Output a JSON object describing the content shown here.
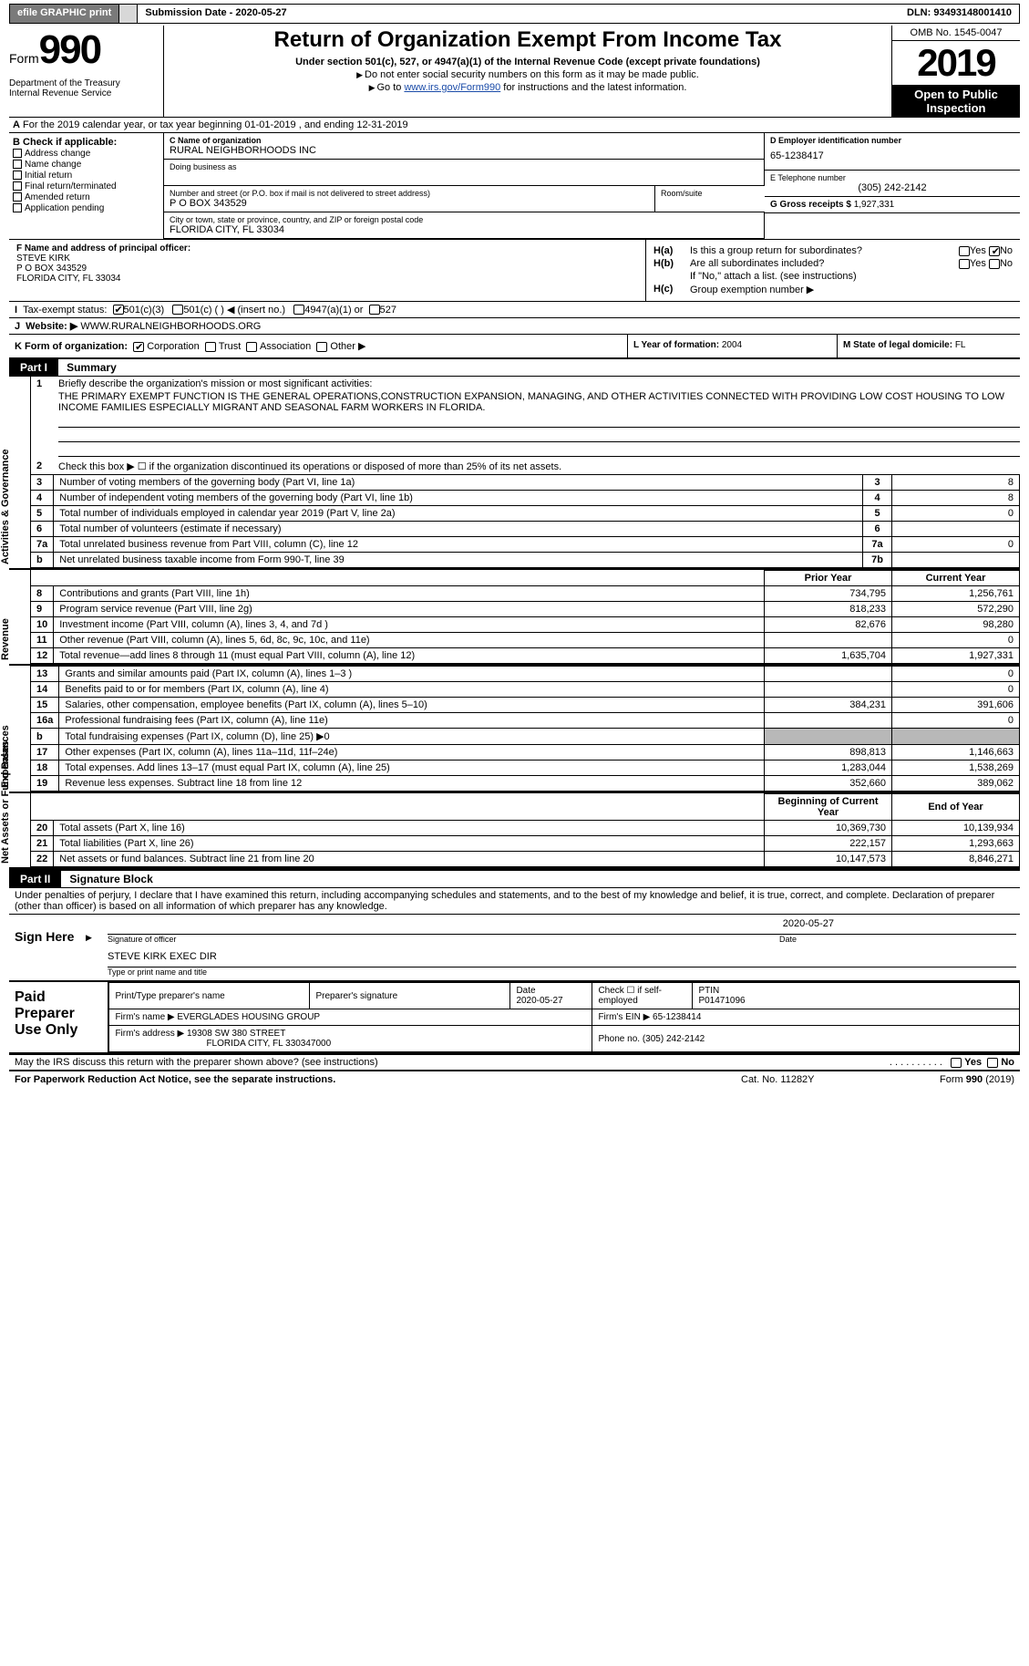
{
  "topbar": {
    "efile": "efile GRAPHIC print",
    "submission": "Submission Date - 2020-05-27",
    "dln": "DLN: 93493148001410"
  },
  "header": {
    "form_word": "Form",
    "form_num": "990",
    "dept": "Department of the Treasury\nInternal Revenue Service",
    "title": "Return of Organization Exempt From Income Tax",
    "subtitle": "Under section 501(c), 527, or 4947(a)(1) of the Internal Revenue Code (except private foundations)",
    "line1": "Do not enter social security numbers on this form as it may be made public.",
    "line2_pre": "Go to ",
    "line2_link": "www.irs.gov/Form990",
    "line2_post": " for instructions and the latest information.",
    "omb": "OMB No. 1545-0047",
    "year": "2019",
    "open": "Open to Public Inspection"
  },
  "A": "For the 2019 calendar year, or tax year beginning 01-01-2019   , and ending 12-31-2019",
  "B": {
    "head": "B Check if applicable:",
    "opts": [
      "Address change",
      "Name change",
      "Initial return",
      "Final return/terminated",
      "Amended return",
      "Application pending"
    ]
  },
  "C": {
    "name_lbl": "C Name of organization",
    "name": "RURAL NEIGHBORHOODS INC",
    "dba_lbl": "Doing business as",
    "addr_lbl": "Number and street (or P.O. box if mail is not delivered to street address)",
    "room_lbl": "Room/suite",
    "addr": "P O BOX 343529",
    "city_lbl": "City or town, state or province, country, and ZIP or foreign postal code",
    "city": "FLORIDA CITY, FL  33034"
  },
  "D": {
    "lbl": "D Employer identification number",
    "val": "65-1238417"
  },
  "E": {
    "lbl": "E Telephone number",
    "val": "(305) 242-2142"
  },
  "G": {
    "lbl": "G Gross receipts $",
    "val": "1,927,331"
  },
  "F": {
    "lbl": "F  Name and address of principal officer:",
    "name": "STEVE KIRK",
    "addr": "P O BOX 343529",
    "city": "FLORIDA CITY, FL  33034"
  },
  "H": {
    "a": "Is this a group return for subordinates?",
    "b": "Are all subordinates included?",
    "bnote": "If \"No,\" attach a list. (see instructions)",
    "c": "Group exemption number ▶"
  },
  "I": {
    "lbl": "Tax-exempt status:",
    "o1": "501(c)(3)",
    "o2": "501(c) (  ) ◀ (insert no.)",
    "o3": "4947(a)(1) or",
    "o4": "527"
  },
  "J": {
    "lbl": "Website: ▶",
    "val": "WWW.RURALNEIGHBORHOODS.ORG"
  },
  "K": {
    "lbl": "K Form of organization:",
    "o1": "Corporation",
    "o2": "Trust",
    "o3": "Association",
    "o4": "Other ▶"
  },
  "L": {
    "lbl": "L Year of formation:",
    "val": "2004"
  },
  "M": {
    "lbl": "M State of legal domicile:",
    "val": "FL"
  },
  "part1": {
    "num": "Part I",
    "title": "Summary"
  },
  "sec_gov": "Activities & Governance",
  "sec_rev": "Revenue",
  "sec_exp": "Expenses",
  "sec_net": "Net Assets or Fund Balances",
  "q1": "Briefly describe the organization's mission or most significant activities:",
  "mission": "THE PRIMARY EXEMPT FUNCTION IS THE GENERAL OPERATIONS,CONSTRUCTION EXPANSION, MANAGING, AND OTHER ACTIVITIES CONNECTED WITH PROVIDING LOW COST HOUSING TO LOW INCOME FAMILIES ESPECIALLY MIGRANT AND SEASONAL FARM WORKERS IN FLORIDA.",
  "q2": "Check this box ▶ ☐  if the organization discontinued its operations or disposed of more than 25% of its net assets.",
  "lines_small": [
    {
      "n": "3",
      "t": "Number of voting members of the governing body (Part VI, line 1a)",
      "ln": "3",
      "v": "8"
    },
    {
      "n": "4",
      "t": "Number of independent voting members of the governing body (Part VI, line 1b)",
      "ln": "4",
      "v": "8"
    },
    {
      "n": "5",
      "t": "Total number of individuals employed in calendar year 2019 (Part V, line 2a)",
      "ln": "5",
      "v": "0"
    },
    {
      "n": "6",
      "t": "Total number of volunteers (estimate if necessary)",
      "ln": "6",
      "v": ""
    },
    {
      "n": "7a",
      "t": "Total unrelated business revenue from Part VIII, column (C), line 12",
      "ln": "7a",
      "v": "0"
    },
    {
      "n": "b",
      "t": "Net unrelated business taxable income from Form 990-T, line 39",
      "ln": "7b",
      "v": ""
    }
  ],
  "col_hdr": {
    "py": "Prior Year",
    "cy": "Current Year"
  },
  "rev_rows": [
    {
      "n": "8",
      "t": "Contributions and grants (Part VIII, line 1h)",
      "py": "734,795",
      "cy": "1,256,761"
    },
    {
      "n": "9",
      "t": "Program service revenue (Part VIII, line 2g)",
      "py": "818,233",
      "cy": "572,290"
    },
    {
      "n": "10",
      "t": "Investment income (Part VIII, column (A), lines 3, 4, and 7d )",
      "py": "82,676",
      "cy": "98,280"
    },
    {
      "n": "11",
      "t": "Other revenue (Part VIII, column (A), lines 5, 6d, 8c, 9c, 10c, and 11e)",
      "py": "",
      "cy": "0"
    },
    {
      "n": "12",
      "t": "Total revenue—add lines 8 through 11 (must equal Part VIII, column (A), line 12)",
      "py": "1,635,704",
      "cy": "1,927,331"
    }
  ],
  "exp_rows": [
    {
      "n": "13",
      "t": "Grants and similar amounts paid (Part IX, column (A), lines 1–3 )",
      "py": "",
      "cy": "0"
    },
    {
      "n": "14",
      "t": "Benefits paid to or for members (Part IX, column (A), line 4)",
      "py": "",
      "cy": "0"
    },
    {
      "n": "15",
      "t": "Salaries, other compensation, employee benefits (Part IX, column (A), lines 5–10)",
      "py": "384,231",
      "cy": "391,606"
    },
    {
      "n": "16a",
      "t": "Professional fundraising fees (Part IX, column (A), line 11e)",
      "py": "",
      "cy": "0"
    },
    {
      "n": "b",
      "t": "Total fundraising expenses (Part IX, column (D), line 25) ▶0",
      "py": "GRAY",
      "cy": "GRAY"
    },
    {
      "n": "17",
      "t": "Other expenses (Part IX, column (A), lines 11a–11d, 11f–24e)",
      "py": "898,813",
      "cy": "1,146,663"
    },
    {
      "n": "18",
      "t": "Total expenses. Add lines 13–17 (must equal Part IX, column (A), line 25)",
      "py": "1,283,044",
      "cy": "1,538,269"
    },
    {
      "n": "19",
      "t": "Revenue less expenses. Subtract line 18 from line 12",
      "py": "352,660",
      "cy": "389,062"
    }
  ],
  "net_hdr": {
    "a": "Beginning of Current Year",
    "b": "End of Year"
  },
  "net_rows": [
    {
      "n": "20",
      "t": "Total assets (Part X, line 16)",
      "py": "10,369,730",
      "cy": "10,139,934"
    },
    {
      "n": "21",
      "t": "Total liabilities (Part X, line 26)",
      "py": "222,157",
      "cy": "1,293,663"
    },
    {
      "n": "22",
      "t": "Net assets or fund balances. Subtract line 21 from line 20",
      "py": "10,147,573",
      "cy": "8,846,271"
    }
  ],
  "part2": {
    "num": "Part II",
    "title": "Signature Block"
  },
  "perjury": "Under penalties of perjury, I declare that I have examined this return, including accompanying schedules and statements, and to the best of my knowledge and belief, it is true, correct, and complete. Declaration of preparer (other than officer) is based on all information of which preparer has any knowledge.",
  "sign": {
    "here": "Sign Here",
    "sig_lbl": "Signature of officer",
    "date": "2020-05-27",
    "date_lbl": "Date",
    "name": "STEVE KIRK EXEC DIR",
    "name_lbl": "Type or print name and title"
  },
  "prep": {
    "title": "Paid Preparer Use Only",
    "h1": "Print/Type preparer's name",
    "h2": "Preparer's signature",
    "h3": "Date",
    "h3v": "2020-05-27",
    "h4": "Check ☐ if self-employed",
    "h5": "PTIN",
    "h5v": "P01471096",
    "firm_lbl": "Firm's name    ▶",
    "firm": "EVERGLADES HOUSING GROUP",
    "ein_lbl": "Firm's EIN ▶",
    "ein": "65-1238414",
    "addr_lbl": "Firm's address ▶",
    "addr": "19308 SW 380 STREET",
    "city": "FLORIDA CITY, FL  330347000",
    "phone_lbl": "Phone no.",
    "phone": "(305) 242-2142"
  },
  "may": "May the IRS discuss this return with the preparer shown above? (see instructions)",
  "foot": {
    "a": "For Paperwork Reduction Act Notice, see the separate instructions.",
    "b": "Cat. No. 11282Y",
    "c": "Form 990 (2019)"
  }
}
